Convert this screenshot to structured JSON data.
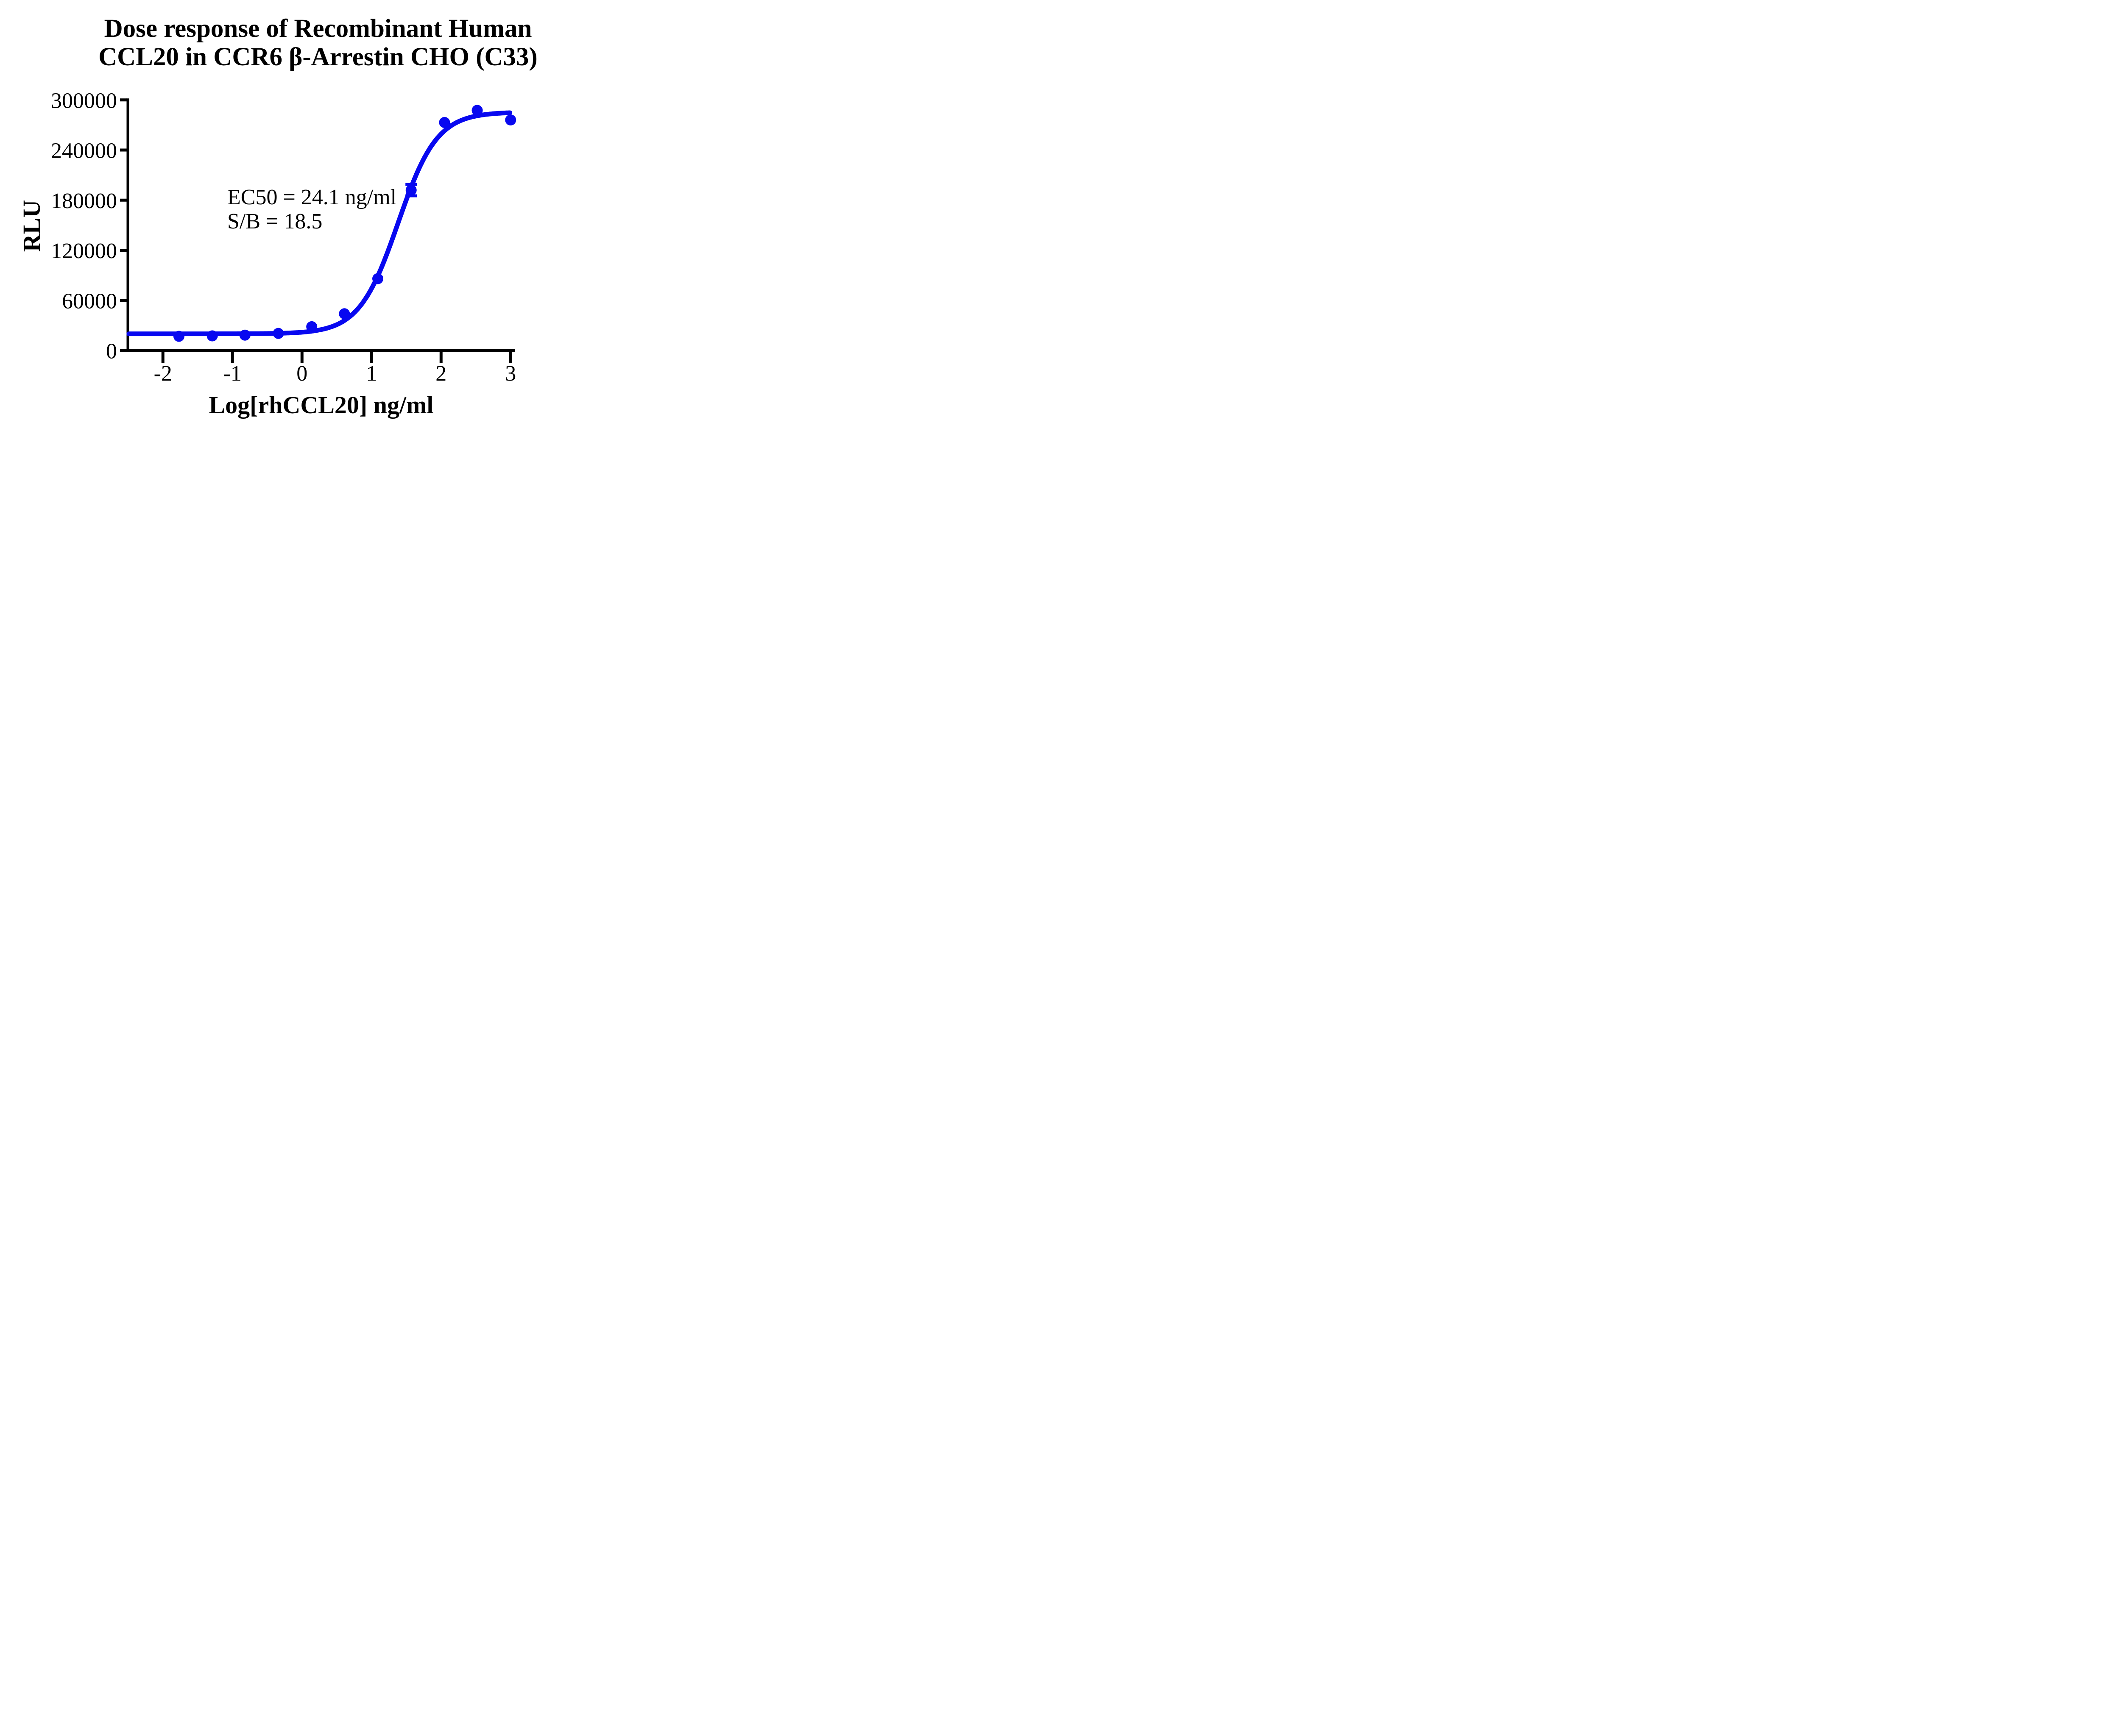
{
  "figure": {
    "title_line1": "Dose response of Recombinant Human",
    "title_line2": "CCL20 in CCR6 β-Arrestin CHO (C33)",
    "annotation_line1": "EC50 = 24.1 ng/ml",
    "annotation_line2": "S/B = 18.5"
  },
  "chart_data": {
    "type": "scatter",
    "title": "Dose response of Recombinant Human CCL20 in CCR6 β-Arrestin CHO (C33)",
    "xlabel": "Log[rhCCL20] ng/ml",
    "ylabel": "RLU",
    "xlim": [
      -2.5,
      3.05
    ],
    "ylim": [
      0,
      300000
    ],
    "x_ticks": [
      -2,
      -1,
      0,
      1,
      2,
      3
    ],
    "y_ticks": [
      0,
      60000,
      120000,
      180000,
      240000,
      300000
    ],
    "grid": false,
    "legend_position": "none",
    "series_color": "#0808f0",
    "axis_color": "#000000",
    "annotation": [
      "EC50 = 24.1 ng/ml",
      "S/B = 18.5"
    ],
    "ec50_ng_ml": 24.1,
    "signal_to_background": 18.5,
    "points": [
      {
        "x": -1.77,
        "y": 17000
      },
      {
        "x": -1.29,
        "y": 17500
      },
      {
        "x": -0.82,
        "y": 18400
      },
      {
        "x": -0.34,
        "y": 20500
      },
      {
        "x": 0.14,
        "y": 28500
      },
      {
        "x": 0.61,
        "y": 44000
      },
      {
        "x": 1.09,
        "y": 86000
      },
      {
        "x": 1.57,
        "y": 192000,
        "error": 6800
      },
      {
        "x": 2.05,
        "y": 273000
      },
      {
        "x": 2.52,
        "y": 287500
      },
      {
        "x": 3.0,
        "y": 276000
      }
    ],
    "fit_curve": {
      "model": "4PL sigmoidal dose-response",
      "bottom": 20000,
      "top": 285500,
      "logEC50": 1.382,
      "hill_slope": 1.55,
      "x_start": -2.49,
      "x_end": 2.99
    }
  }
}
